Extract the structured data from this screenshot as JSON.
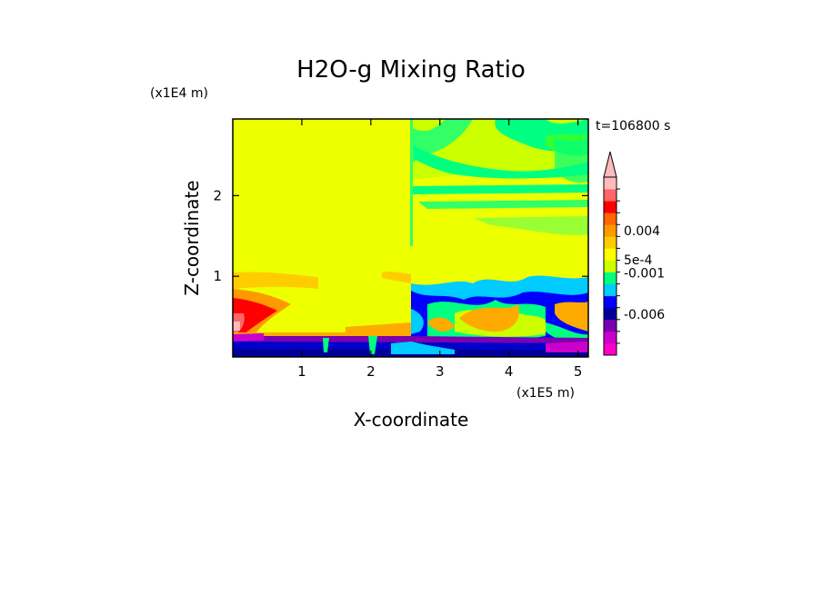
{
  "chart_data": {
    "type": "heatmap",
    "title": "H2O-g Mixing Ratio",
    "xlabel": "X-coordinate",
    "ylabel": "Z-coordinate",
    "x_scale_label": "(x1E5 m)",
    "y_scale_label": "(x1E4 m)",
    "time_label": "t=106800 s",
    "xlim": [
      0,
      5.15
    ],
    "ylim": [
      0,
      2.95
    ],
    "x_ticks": [
      1,
      2,
      3,
      4,
      5
    ],
    "x_tick_labels": [
      "1",
      "2",
      "3",
      "4",
      "5"
    ],
    "y_ticks": [
      1,
      2
    ],
    "y_tick_labels": [
      "1",
      "2"
    ],
    "colorbar": {
      "colors": [
        "#ff00cc",
        "#cc00cc",
        "#7a00b0",
        "#000099",
        "#0000ff",
        "#00ccff",
        "#00ff80",
        "#ccff00",
        "#ffff00",
        "#ffcc00",
        "#ff9900",
        "#ff6600",
        "#ff0000",
        "#ff6666",
        "#ffbbbb"
      ],
      "labeled_levels": [
        {
          "label": "0.004",
          "position": 0.7
        },
        {
          "label": "5e-4",
          "position": 0.535
        },
        {
          "label": "-0.001",
          "position": 0.462
        },
        {
          "label": "-0.006",
          "position": 0.23
        }
      ],
      "extend": "max"
    },
    "regions": [
      {
        "band": "background",
        "color": "#ffff00"
      },
      {
        "band": "upper-right cloud layer",
        "color": "#00ff80"
      },
      {
        "band": "mid-level cyan/blue layer",
        "color": "#0000ff"
      },
      {
        "band": "near-surface layer",
        "color": "#7a00b0"
      },
      {
        "band": "lower-left moist layer",
        "color": "#ff0000"
      }
    ]
  }
}
